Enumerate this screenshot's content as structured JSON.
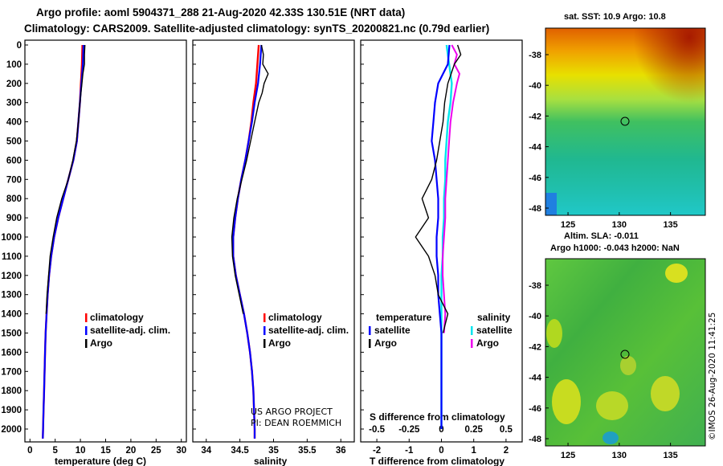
{
  "header": {
    "line1": "Argo profile: aoml 5904371_288 21-Aug-2020 42.33S 130.51E (NRT data)",
    "line2": "Climatology: CARS2009. Satellite-adjusted climatology: synTS_20200821.nc (0.79d earlier)"
  },
  "colors": {
    "climatology": "#ff0000",
    "satellite": "#0000ff",
    "argo": "#000000",
    "sal_satellite": "#00e5ee",
    "sal_argo": "#ee00ee"
  },
  "legend": {
    "climatology": "climatology",
    "satellite_adj": "satellite-adj. clim.",
    "argo": "Argo",
    "temperature_title": "temperature",
    "salinity_title": "salinity",
    "satellite": "satellite"
  },
  "credit": {
    "line1": "US ARGO PROJECT",
    "line2": "PI: DEAN ROEMMICH"
  },
  "maps": {
    "sst_title": "sat. SST: 10.9 Argo: 10.8",
    "sla_title1": "Altim. SLA: -0.011",
    "sla_title2": "Argo h1000: -0.043 h2000: NaN",
    "lat_ticks": [
      "-38",
      "-40",
      "-42",
      "-44",
      "-46",
      "-48"
    ],
    "lon_ticks": [
      "125",
      "130",
      "135"
    ],
    "float_lon": 130.51,
    "float_lat": -42.33,
    "timestamp": "©IMOS 26-Aug-2020 11:41:25"
  },
  "chart_data": [
    {
      "type": "line",
      "xlabel": "temperature (deg C)",
      "ylabel": "",
      "xlim": [
        -1,
        31
      ],
      "ylim": [
        2100,
        0
      ],
      "x_ticks": [
        "0",
        "5",
        "10",
        "15",
        "20",
        "25",
        "30"
      ],
      "y_ticks": [
        "0",
        "100",
        "200",
        "300",
        "400",
        "500",
        "600",
        "700",
        "800",
        "900",
        "1000",
        "1100",
        "1200",
        "1300",
        "1400",
        "1500",
        "1600",
        "1700",
        "1800",
        "1900",
        "2000"
      ],
      "series": [
        {
          "name": "climatology",
          "depth": [
            0,
            100,
            200,
            300,
            400,
            500,
            600,
            700,
            800,
            900,
            1000,
            1100,
            1200,
            1300,
            1400,
            1500,
            1600,
            1700,
            1800,
            1900,
            2000,
            2050
          ],
          "values": [
            10.4,
            10.3,
            10.1,
            9.9,
            9.6,
            9.3,
            8.6,
            7.6,
            6.6,
            5.6,
            4.8,
            4.2,
            3.8,
            3.5,
            3.3,
            3.1,
            3.0,
            2.9,
            2.8,
            2.7,
            2.6,
            2.55
          ]
        },
        {
          "name": "satellite-adj. clim.",
          "depth": [
            0,
            100,
            200,
            300,
            400,
            500,
            600,
            700,
            800,
            900,
            1000,
            1100,
            1200,
            1300,
            1400,
            1500,
            1600,
            1700,
            1800,
            1900,
            2000,
            2050
          ],
          "values": [
            10.6,
            10.5,
            10.2,
            9.9,
            9.6,
            9.3,
            8.6,
            7.6,
            6.6,
            5.6,
            4.8,
            4.2,
            3.8,
            3.5,
            3.3,
            3.1,
            3.0,
            2.9,
            2.8,
            2.7,
            2.6,
            2.55
          ]
        },
        {
          "name": "Argo",
          "depth": [
            0,
            50,
            100,
            150,
            200,
            300,
            400,
            500,
            600,
            700,
            800,
            900,
            1000,
            1100,
            1200,
            1300,
            1400
          ],
          "values": [
            10.9,
            10.8,
            10.8,
            10.5,
            10.3,
            9.9,
            9.6,
            9.2,
            8.5,
            7.6,
            6.3,
            5.3,
            4.6,
            4.0,
            3.7,
            3.4,
            3.2
          ]
        }
      ]
    },
    {
      "type": "line",
      "xlabel": "salinity",
      "xlim": [
        33.8,
        36.2
      ],
      "ylim": [
        2100,
        0
      ],
      "x_ticks": [
        "34",
        "34.5",
        "35",
        "35.5",
        "36"
      ],
      "series": [
        {
          "name": "climatology",
          "depth": [
            0,
            100,
            200,
            300,
            400,
            500,
            600,
            700,
            800,
            900,
            1000,
            1100,
            1200,
            1300,
            1400,
            1500,
            1600,
            1700,
            1800,
            1900,
            2000,
            2050
          ],
          "values": [
            34.78,
            34.76,
            34.74,
            34.7,
            34.67,
            34.63,
            34.58,
            34.52,
            34.47,
            34.43,
            34.4,
            34.4,
            34.44,
            34.5,
            34.56,
            34.61,
            34.65,
            34.68,
            34.7,
            34.71,
            34.72,
            34.72
          ]
        },
        {
          "name": "satellite-adj. clim.",
          "depth": [
            0,
            100,
            200,
            300,
            400,
            500,
            600,
            700,
            800,
            900,
            1000,
            1100,
            1200,
            1300,
            1400,
            1500,
            1600,
            1700,
            1800,
            1900,
            2000,
            2050
          ],
          "values": [
            34.82,
            34.8,
            34.77,
            34.72,
            34.68,
            34.63,
            34.58,
            34.52,
            34.47,
            34.43,
            34.4,
            34.4,
            34.44,
            34.5,
            34.56,
            34.61,
            34.65,
            34.68,
            34.7,
            34.71,
            34.72,
            34.72
          ]
        },
        {
          "name": "Argo",
          "depth": [
            0,
            50,
            100,
            150,
            200,
            250,
            300,
            400,
            500,
            600,
            700,
            800,
            900,
            1000,
            1100,
            1200,
            1300,
            1400
          ],
          "values": [
            34.82,
            34.85,
            34.84,
            34.92,
            34.86,
            34.83,
            34.78,
            34.72,
            34.66,
            34.6,
            34.53,
            34.46,
            34.41,
            34.38,
            34.39,
            34.43,
            34.49,
            34.55
          ]
        }
      ]
    },
    {
      "type": "line",
      "xlabel": "T difference from climatology",
      "xlim": [
        -2.5,
        2.5
      ],
      "ylim": [
        2100,
        0
      ],
      "x_ticks": [
        "-2",
        "-1",
        "0",
        "1",
        "2"
      ],
      "x2_label": "S difference from climatology",
      "x2_ticks": [
        "-0.5",
        "-0.25",
        "0",
        "0.25",
        "0.5"
      ],
      "series": [
        {
          "name": "temperature satellite",
          "depth": [
            0,
            100,
            200,
            300,
            400,
            500,
            600,
            700,
            800,
            900,
            1000,
            1100,
            1200,
            1300,
            1400,
            1500,
            1600,
            1700,
            1800,
            1900,
            2000
          ],
          "values": [
            0.25,
            0.2,
            -0.1,
            -0.2,
            -0.25,
            -0.3,
            -0.2,
            -0.15,
            -0.1,
            -0.1,
            -0.15,
            -0.15,
            -0.1,
            -0.1,
            -0.05,
            0,
            0,
            0,
            0,
            0,
            0
          ]
        },
        {
          "name": "temperature Argo",
          "depth": [
            0,
            50,
            100,
            150,
            200,
            300,
            400,
            500,
            600,
            700,
            800,
            900,
            1000,
            1100,
            1200,
            1300,
            1400,
            1500
          ],
          "values": [
            0.5,
            0.6,
            0.4,
            0.3,
            0.2,
            0.1,
            0.05,
            -0.05,
            -0.15,
            -0.3,
            -0.6,
            -0.4,
            -0.8,
            -0.4,
            -0.2,
            -0.1,
            0.2,
            0.05
          ]
        },
        {
          "name": "salinity satellite",
          "depth": [
            0,
            100,
            200,
            300,
            400,
            500,
            600,
            700,
            800,
            900,
            1000,
            1100,
            1200,
            1300,
            1400,
            1500,
            1600,
            1700,
            1800,
            1900,
            2000
          ],
          "values": [
            0.04,
            0.06,
            0.08,
            0.07,
            0.05,
            0.04,
            0.03,
            0.03,
            0.02,
            0.02,
            0.01,
            0.01,
            0,
            0,
            0,
            0,
            0,
            0,
            0,
            0,
            0
          ]
        },
        {
          "name": "salinity Argo",
          "depth": [
            0,
            50,
            100,
            150,
            200,
            300,
            400,
            500,
            600,
            700,
            800,
            900,
            1000,
            1100,
            1200,
            1300,
            1400,
            1500
          ],
          "values": [
            0.08,
            0.12,
            0.1,
            0.14,
            0.12,
            0.09,
            0.07,
            0.06,
            0.05,
            0.04,
            0.03,
            0.03,
            0.02,
            0.01,
            0.01,
            0.02,
            0.03,
            0.02
          ]
        }
      ]
    }
  ]
}
